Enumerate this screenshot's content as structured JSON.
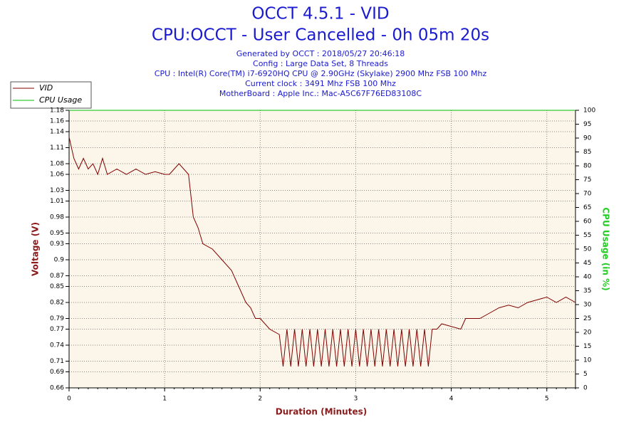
{
  "chart_data": {
    "type": "line",
    "title": "OCCT 4.5.1 - VID",
    "subtitle": "CPU:OCCT - User Cancelled - 0h 05m 20s",
    "info": [
      "Generated by OCCT : 2018/05/27 20:46:18",
      "Config : Large Data Set, 8 Threads",
      "CPU : Intel(R) Core(TM) i7-6920HQ CPU @ 2.90GHz (Skylake) 2900 Mhz FSB 100 Mhz",
      "Current clock : 3491 Mhz FSB 100 Mhz",
      "MotherBoard : Apple Inc.: Mac-A5C67F76ED83108C"
    ],
    "xlabel": "Duration (Minutes)",
    "ylabel": "Voltage (V)",
    "y2label": "CPU Usage (in %)",
    "legend": "top-left",
    "grid": true,
    "xlim": [
      0,
      5.3
    ],
    "xticks": [
      0,
      1,
      2,
      3,
      4,
      5
    ],
    "ylim": [
      0.66,
      1.18
    ],
    "yticks": [
      0.66,
      0.69,
      0.71,
      0.74,
      0.77,
      0.79,
      0.82,
      0.85,
      0.87,
      0.9,
      0.93,
      0.95,
      0.98,
      1.01,
      1.03,
      1.06,
      1.08,
      1.11,
      1.14,
      1.16,
      1.18
    ],
    "y2lim": [
      0,
      100
    ],
    "y2ticks": [
      0,
      5,
      10,
      15,
      20,
      25,
      30,
      35,
      40,
      45,
      50,
      55,
      60,
      65,
      70,
      75,
      80,
      85,
      90,
      95,
      100
    ],
    "series": [
      {
        "name": "VID",
        "color": "#800000",
        "x": [
          0,
          0.05,
          0.1,
          0.15,
          0.2,
          0.25,
          0.3,
          0.35,
          0.4,
          0.5,
          0.6,
          0.7,
          0.8,
          0.9,
          1.0,
          1.05,
          1.1,
          1.15,
          1.2,
          1.25,
          1.3,
          1.35,
          1.4,
          1.5,
          1.6,
          1.7,
          1.75,
          1.8,
          1.85,
          1.9,
          1.95,
          2.0,
          2.05,
          2.1,
          2.2,
          2.24,
          2.28,
          2.32,
          2.36,
          2.4,
          2.44,
          2.48,
          2.52,
          2.56,
          2.6,
          2.64,
          2.68,
          2.72,
          2.76,
          2.8,
          2.84,
          2.88,
          2.92,
          2.96,
          3.0,
          3.04,
          3.08,
          3.12,
          3.16,
          3.2,
          3.24,
          3.28,
          3.32,
          3.36,
          3.4,
          3.44,
          3.48,
          3.52,
          3.56,
          3.6,
          3.64,
          3.68,
          3.72,
          3.76,
          3.8,
          3.85,
          3.9,
          4.0,
          4.1,
          4.15,
          4.3,
          4.4,
          4.5,
          4.6,
          4.7,
          4.8,
          4.9,
          5.0,
          5.1,
          5.2,
          5.3
        ],
        "values": [
          1.13,
          1.09,
          1.07,
          1.09,
          1.07,
          1.08,
          1.06,
          1.09,
          1.06,
          1.07,
          1.06,
          1.07,
          1.06,
          1.065,
          1.06,
          1.06,
          1.07,
          1.08,
          1.07,
          1.06,
          0.98,
          0.96,
          0.93,
          0.92,
          0.9,
          0.88,
          0.86,
          0.84,
          0.82,
          0.81,
          0.79,
          0.79,
          0.78,
          0.77,
          0.76,
          0.7,
          0.77,
          0.7,
          0.77,
          0.7,
          0.77,
          0.7,
          0.77,
          0.7,
          0.77,
          0.7,
          0.77,
          0.7,
          0.77,
          0.7,
          0.77,
          0.7,
          0.77,
          0.7,
          0.77,
          0.7,
          0.77,
          0.7,
          0.77,
          0.7,
          0.77,
          0.7,
          0.77,
          0.7,
          0.77,
          0.7,
          0.77,
          0.7,
          0.77,
          0.7,
          0.77,
          0.7,
          0.77,
          0.7,
          0.77,
          0.77,
          0.78,
          0.775,
          0.77,
          0.79,
          0.79,
          0.8,
          0.81,
          0.815,
          0.81,
          0.82,
          0.825,
          0.83,
          0.82,
          0.83,
          0.82
        ]
      },
      {
        "name": "CPU Usage",
        "color": "#00c000",
        "axis": "y2",
        "x": [
          0,
          5.3
        ],
        "values": [
          100,
          100
        ]
      }
    ]
  }
}
